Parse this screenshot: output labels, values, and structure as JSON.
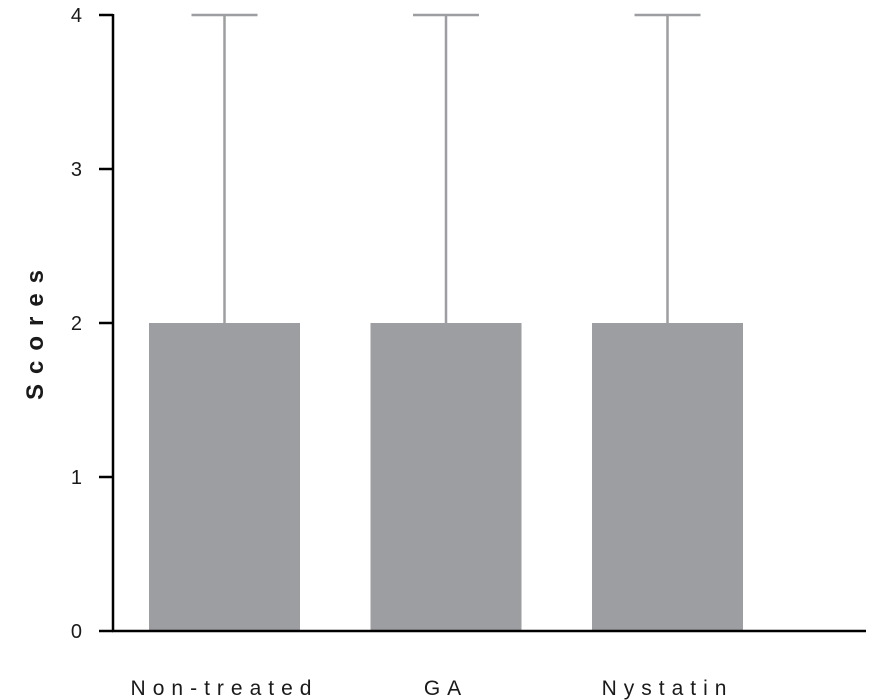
{
  "chart_data": {
    "type": "bar",
    "title": "",
    "xlabel": "",
    "ylabel": "Scores",
    "ylim": [
      0,
      4
    ],
    "yticks": [
      0,
      1,
      2,
      3,
      4
    ],
    "grid": false,
    "categories": [
      "Non-treated",
      "GA",
      "Nystatin"
    ],
    "values": [
      2,
      2,
      2
    ],
    "error_upper": [
      4,
      4,
      4
    ],
    "colors": {
      "bar": "#9d9ea2",
      "error_bar": "#9d9ea2",
      "axis": "#000000"
    }
  }
}
